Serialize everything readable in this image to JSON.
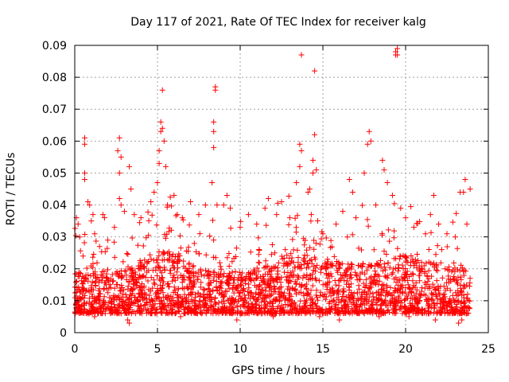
{
  "chart_data": {
    "type": "scatter",
    "title": "Day 117 of 2021, Rate Of TEC Index for receiver kalg",
    "xlabel": "GPS time / hours",
    "ylabel": "ROTI / TECUs",
    "xlim": [
      0,
      25
    ],
    "ylim": [
      0,
      0.09
    ],
    "xticks": [
      "0",
      "5",
      "10",
      "15",
      "20",
      "25"
    ],
    "yticks": [
      "0",
      "0.01",
      "0.02",
      "0.03",
      "0.04",
      "0.05",
      "0.06",
      "0.07",
      "0.08",
      "0.09"
    ],
    "grid": true,
    "marker": "+",
    "color": "#ff0000",
    "series": [
      {
        "name": "ROTI",
        "points": [
          [
            0.1,
            0.036
          ],
          [
            0.2,
            0.034
          ],
          [
            0.3,
            0.03
          ],
          [
            0.5,
            0.024
          ],
          [
            0.6,
            0.059
          ],
          [
            0.6,
            0.061
          ],
          [
            0.6,
            0.05
          ],
          [
            0.6,
            0.048
          ],
          [
            0.8,
            0.041
          ],
          [
            0.9,
            0.04
          ],
          [
            1.0,
            0.035
          ],
          [
            1.1,
            0.037
          ],
          [
            1.2,
            0.031
          ],
          [
            1.5,
            0.027
          ],
          [
            1.7,
            0.037
          ],
          [
            1.8,
            0.036
          ],
          [
            2.0,
            0.029
          ],
          [
            2.4,
            0.033
          ],
          [
            2.6,
            0.057
          ],
          [
            2.7,
            0.061
          ],
          [
            2.7,
            0.05
          ],
          [
            2.7,
            0.042
          ],
          [
            2.8,
            0.055
          ],
          [
            2.8,
            0.04
          ],
          [
            3.0,
            0.038
          ],
          [
            3.3,
            0.052
          ],
          [
            3.4,
            0.045
          ],
          [
            3.6,
            0.037
          ],
          [
            4.0,
            0.036
          ],
          [
            4.6,
            0.041
          ],
          [
            4.8,
            0.044
          ],
          [
            5.0,
            0.047
          ],
          [
            5.1,
            0.057
          ],
          [
            5.1,
            0.053
          ],
          [
            5.2,
            0.063
          ],
          [
            5.2,
            0.066
          ],
          [
            5.3,
            0.076
          ],
          [
            5.3,
            0.064
          ],
          [
            5.4,
            0.06
          ],
          [
            5.5,
            0.052
          ],
          [
            5.6,
            0.04
          ],
          [
            6.0,
            0.043
          ],
          [
            6.2,
            0.037
          ],
          [
            6.5,
            0.036
          ],
          [
            7.0,
            0.041
          ],
          [
            7.5,
            0.037
          ],
          [
            7.9,
            0.04
          ],
          [
            8.3,
            0.047
          ],
          [
            8.4,
            0.066
          ],
          [
            8.4,
            0.063
          ],
          [
            8.4,
            0.058
          ],
          [
            8.5,
            0.077
          ],
          [
            8.5,
            0.076
          ],
          [
            8.6,
            0.04
          ],
          [
            9.0,
            0.04
          ],
          [
            9.2,
            0.043
          ],
          [
            9.4,
            0.039
          ],
          [
            10.0,
            0.033
          ],
          [
            10.5,
            0.037
          ],
          [
            11.0,
            0.034
          ],
          [
            11.5,
            0.039
          ],
          [
            11.7,
            0.042
          ],
          [
            12.2,
            0.037
          ],
          [
            12.5,
            0.041
          ],
          [
            13.0,
            0.036
          ],
          [
            13.4,
            0.047
          ],
          [
            13.6,
            0.052
          ],
          [
            13.6,
            0.059
          ],
          [
            13.7,
            0.057
          ],
          [
            13.7,
            0.087
          ],
          [
            14.1,
            0.044
          ],
          [
            14.2,
            0.045
          ],
          [
            14.3,
            0.037
          ],
          [
            14.4,
            0.05
          ],
          [
            14.4,
            0.054
          ],
          [
            14.5,
            0.062
          ],
          [
            14.5,
            0.082
          ],
          [
            14.6,
            0.051
          ],
          [
            15.0,
            0.031
          ],
          [
            15.8,
            0.034
          ],
          [
            16.2,
            0.038
          ],
          [
            16.6,
            0.048
          ],
          [
            16.8,
            0.044
          ],
          [
            17.0,
            0.036
          ],
          [
            17.5,
            0.05
          ],
          [
            17.7,
            0.059
          ],
          [
            17.8,
            0.063
          ],
          [
            17.9,
            0.06
          ],
          [
            18.2,
            0.04
          ],
          [
            18.6,
            0.054
          ],
          [
            18.7,
            0.051
          ],
          [
            18.9,
            0.047
          ],
          [
            19.2,
            0.043
          ],
          [
            19.4,
            0.088
          ],
          [
            19.4,
            0.087
          ],
          [
            19.5,
            0.089
          ],
          [
            19.5,
            0.087
          ],
          [
            19.7,
            0.039
          ],
          [
            20.0,
            0.036
          ],
          [
            20.5,
            0.033
          ],
          [
            21.2,
            0.031
          ],
          [
            21.5,
            0.037
          ],
          [
            21.7,
            0.043
          ],
          [
            22.0,
            0.034
          ],
          [
            22.5,
            0.031
          ],
          [
            23.0,
            0.03
          ],
          [
            23.3,
            0.044
          ],
          [
            23.5,
            0.044
          ],
          [
            23.6,
            0.048
          ],
          [
            23.7,
            0.034
          ],
          [
            23.9,
            0.045
          ],
          [
            1.2,
            0.005
          ],
          [
            3.2,
            0.004
          ],
          [
            3.3,
            0.003
          ],
          [
            6.4,
            0.005
          ],
          [
            9.8,
            0.004
          ],
          [
            12.0,
            0.005
          ],
          [
            14.8,
            0.005
          ],
          [
            16.0,
            0.004
          ],
          [
            18.4,
            0.005
          ],
          [
            20.2,
            0.005
          ],
          [
            21.8,
            0.004
          ],
          [
            23.2,
            0.003
          ],
          [
            23.4,
            0.004
          ]
        ]
      }
    ]
  }
}
